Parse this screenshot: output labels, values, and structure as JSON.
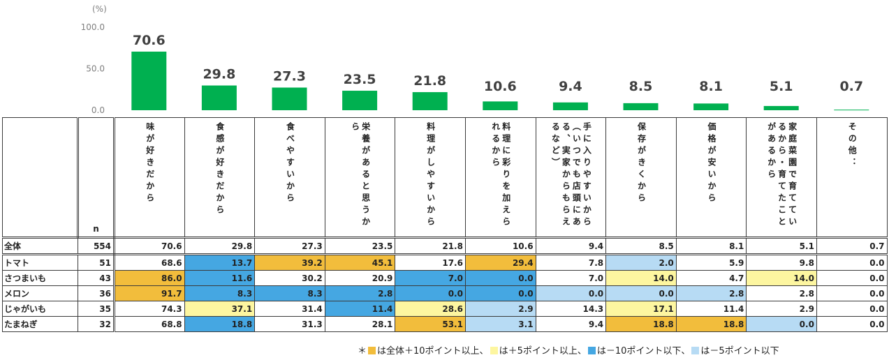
{
  "chart_data": {
    "type": "bar",
    "unit_label": "(%)",
    "y_ticks": [
      "100.0",
      "50.0",
      "0.0"
    ],
    "ylim": [
      0,
      100
    ],
    "bar_color": "#00b050",
    "categories": [
      "味が好きだから",
      "食感が好きだから",
      "食べやすいから",
      "栄養があると思うから",
      "料理がしやすいから",
      "料理に彩りを加えられるから",
      "手に入りやすいから（いつでも店頭にある、実家からもらえるなど）",
      "保存がきくから",
      "価格が安いから",
      "家庭菜園で育てているから・育てたことがあるから",
      "その他："
    ],
    "values": [
      70.6,
      29.8,
      27.3,
      23.5,
      21.8,
      10.6,
      9.4,
      8.5,
      8.1,
      5.1,
      0.7
    ],
    "value_labels": [
      "70.6",
      "29.8",
      "27.3",
      "23.5",
      "21.8",
      "10.6",
      "9.4",
      "8.5",
      "8.1",
      "5.1",
      "0.7"
    ]
  },
  "table": {
    "n_header": "n",
    "rows": [
      {
        "label": "全体",
        "n": "554",
        "values": [
          "70.6",
          "29.8",
          "27.3",
          "23.5",
          "21.8",
          "10.6",
          "9.4",
          "8.5",
          "8.1",
          "5.1",
          "0.7"
        ],
        "colors": [
          "",
          "",
          "",
          "",
          "",
          "",
          "",
          "",
          "",
          "",
          ""
        ]
      },
      {
        "label": "トマト",
        "n": "51",
        "values": [
          "68.6",
          "13.7",
          "39.2",
          "45.1",
          "17.6",
          "29.4",
          "7.8",
          "2.0",
          "5.9",
          "9.8",
          "0.0"
        ],
        "colors": [
          "",
          "b",
          "o",
          "o",
          "",
          "o",
          "",
          "lb",
          "",
          "",
          ""
        ]
      },
      {
        "label": "さつまいも",
        "n": "43",
        "values": [
          "86.0",
          "11.6",
          "30.2",
          "20.9",
          "7.0",
          "0.0",
          "7.0",
          "14.0",
          "4.7",
          "14.0",
          "0.0"
        ],
        "colors": [
          "o",
          "b",
          "",
          "",
          "b",
          "b",
          "",
          "y",
          "",
          "y",
          ""
        ]
      },
      {
        "label": "メロン",
        "n": "36",
        "values": [
          "91.7",
          "8.3",
          "8.3",
          "2.8",
          "0.0",
          "0.0",
          "0.0",
          "0.0",
          "2.8",
          "2.8",
          "0.0"
        ],
        "colors": [
          "o",
          "b",
          "b",
          "b",
          "b",
          "b",
          "lb",
          "lb",
          "lb",
          "",
          ""
        ]
      },
      {
        "label": "じゃがいも",
        "n": "35",
        "values": [
          "74.3",
          "37.1",
          "31.4",
          "11.4",
          "28.6",
          "2.9",
          "14.3",
          "17.1",
          "11.4",
          "2.9",
          "0.0"
        ],
        "colors": [
          "",
          "y",
          "",
          "b",
          "y",
          "lb",
          "",
          "y",
          "",
          "",
          ""
        ]
      },
      {
        "label": "たまねぎ",
        "n": "32",
        "values": [
          "68.8",
          "18.8",
          "31.3",
          "28.1",
          "53.1",
          "3.1",
          "9.4",
          "18.8",
          "18.8",
          "0.0",
          "0.0"
        ],
        "colors": [
          "",
          "b",
          "",
          "",
          "o",
          "lb",
          "",
          "o",
          "o",
          "lb",
          ""
        ]
      }
    ]
  },
  "colors": {
    "orange": "#f2bd3c",
    "yellow": "#fdf6a0",
    "blue": "#45a7e2",
    "light_blue": "#b7dbf4"
  },
  "legend": {
    "prefix": "＊",
    "items": [
      {
        "swatch": "orange",
        "text": "は全体＋10ポイント以上、"
      },
      {
        "swatch": "yellow",
        "text": "は＋5ポイント以上、"
      },
      {
        "swatch": "blue",
        "text": "は－10ポイント以下、"
      },
      {
        "swatch": "light_blue",
        "text": "は－5ポイント以下"
      }
    ]
  }
}
